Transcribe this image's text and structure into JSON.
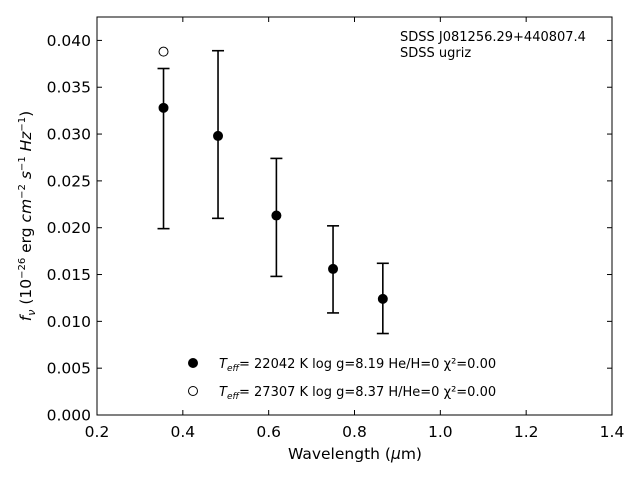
{
  "chart_data": {
    "type": "scatter",
    "xlabel": "Wavelength (μm)",
    "ylabel": "fν (10⁻²⁶ erg cm⁻² s⁻¹ Hz⁻¹)",
    "xlim": [
      0.2,
      1.4
    ],
    "ylim": [
      0.0,
      0.0425
    ],
    "x_ticks": [
      "0.2",
      "0.4",
      "0.6",
      "0.8",
      "1.0",
      "1.2",
      "1.4"
    ],
    "y_ticks": [
      "0.000",
      "0.005",
      "0.010",
      "0.015",
      "0.020",
      "0.025",
      "0.030",
      "0.035",
      "0.040"
    ],
    "annotations": [
      "SDSS J081256.29+440807.4",
      "SDSS ugriz"
    ],
    "legend_position": "lower-center",
    "series": [
      {
        "name": "Teff= 22042 K  log g=8.19  He/H=0  χ²=0.00",
        "marker": "filled-circle",
        "points": [
          {
            "x": 0.355,
            "y": 0.0328,
            "ylow": 0.0199,
            "yhigh": 0.037
          },
          {
            "x": 0.482,
            "y": 0.0298,
            "ylow": 0.021,
            "yhigh": 0.0389
          },
          {
            "x": 0.618,
            "y": 0.0213,
            "ylow": 0.0148,
            "yhigh": 0.0274
          },
          {
            "x": 0.75,
            "y": 0.0156,
            "ylow": 0.0109,
            "yhigh": 0.0202
          },
          {
            "x": 0.866,
            "y": 0.0124,
            "ylow": 0.0087,
            "yhigh": 0.0162
          }
        ]
      },
      {
        "name": "Teff= 27307 K  log g=8.37  H/He=0  χ²=0.00",
        "marker": "open-circle",
        "points": [
          {
            "x": 0.355,
            "y": 0.0388
          }
        ]
      }
    ],
    "legend": [
      {
        "teff": "22042",
        "rest": "= 22042 K  log g=8.19  He/H=0  χ²=0.00"
      },
      {
        "teff": "27307",
        "rest": "= 27307 K  log g=8.37  H/He=0  χ²=0.00"
      }
    ]
  }
}
